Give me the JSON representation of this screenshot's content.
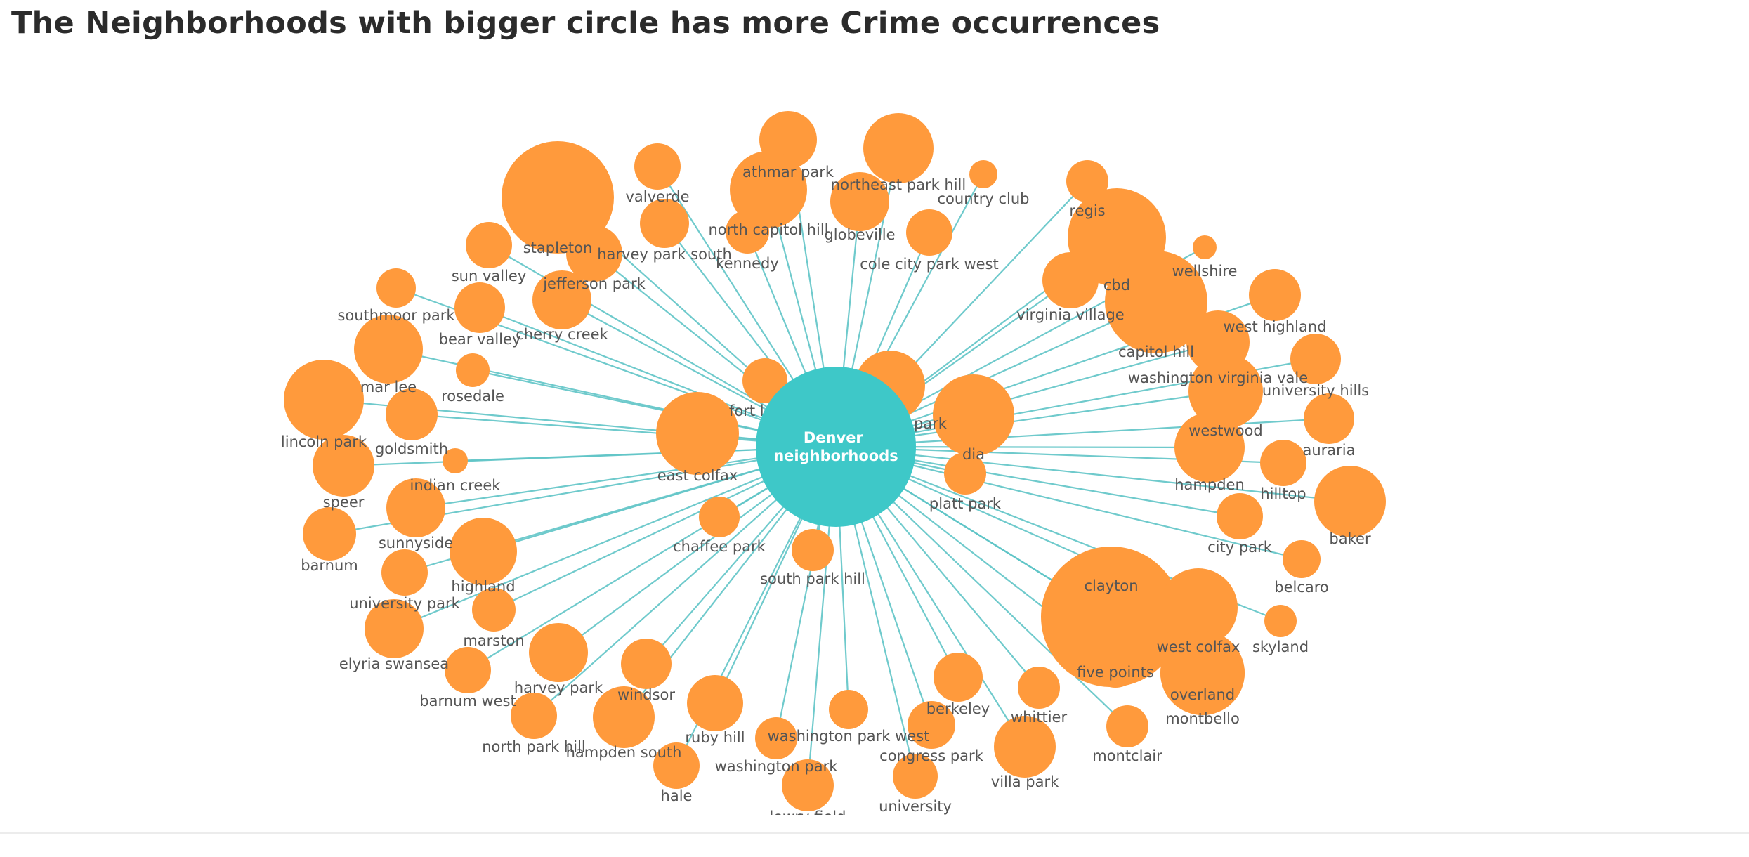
{
  "page": {
    "title": "The Neighborhoods with bigger circle has more Crime occurrences"
  },
  "colors": {
    "center": "#3EC8C8",
    "leaf": "#FF9A3C",
    "edge": "#5FC4C6",
    "label": "#555555",
    "title": "#2b2b2b"
  },
  "graph": {
    "center": {
      "label_lines": [
        "Denver",
        "neighborhoods"
      ]
    },
    "nodes": [
      "athmar park",
      "northeast park hill",
      "valverde",
      "country club",
      "regis",
      "north capitol hill",
      "globeville",
      "stapleton",
      "harvey park south",
      "kennedy",
      "cole city park west",
      "wellshire",
      "sun valley",
      "jefferson park",
      "cbd",
      "southmoor park",
      "virginia village",
      "bear valley",
      "cherry creek",
      "west highland",
      "capitol hill",
      "washington virginia vale",
      "mar lee",
      "rosedale",
      "university hills",
      "fort logan",
      "lincoln park",
      "goldsmith",
      "cheesman park",
      "westwood",
      "auraria",
      "dia",
      "east colfax",
      "speer",
      "indian creek",
      "hampden",
      "hilltop",
      "platt park",
      "sunnyside",
      "barnum",
      "baker",
      "chaffee park",
      "city park",
      "south park hill",
      "highland",
      "belcaro",
      "university park",
      "clayton",
      "marston",
      "west colfax",
      "skyland",
      "elyria swansea",
      "five points",
      "harvey park",
      "barnum west",
      "overland",
      "windsor",
      "montbello",
      "berkeley",
      "whittier",
      "north park hill",
      "hampden south",
      "ruby hill",
      "washington park west",
      "congress park",
      "montclair",
      "washington park",
      "villa park",
      "hale",
      "university",
      "lowry field"
    ]
  }
}
